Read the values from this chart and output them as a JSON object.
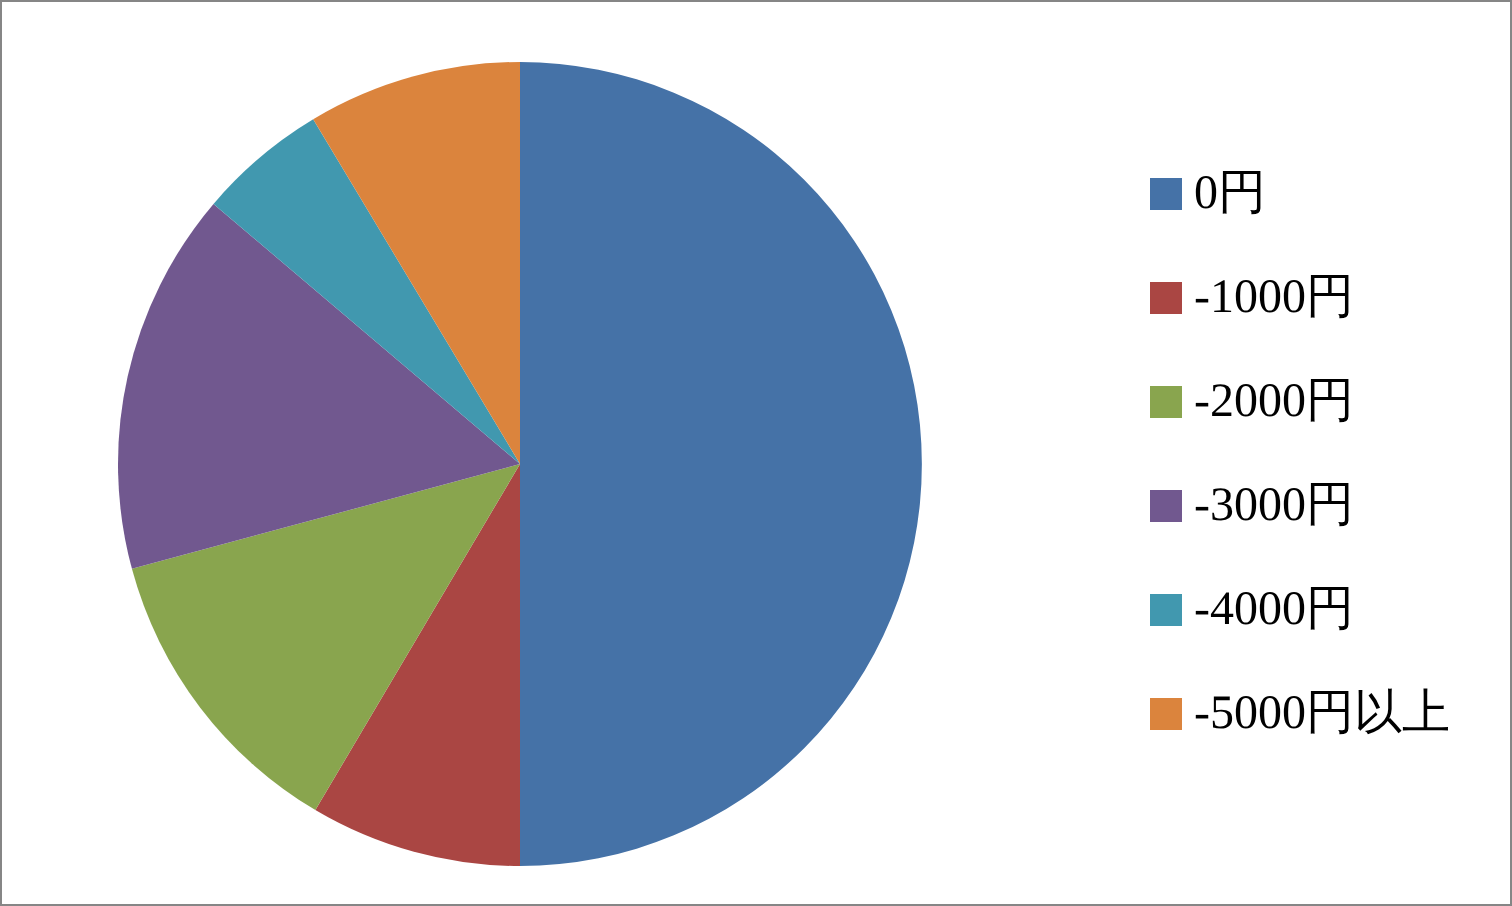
{
  "chart_data": {
    "type": "pie",
    "categories": [
      "0円",
      "-1000円",
      "-2000円",
      "-3000円",
      "-4000円",
      "-5000円以上"
    ],
    "values": [
      50,
      8.5,
      12.3,
      15.4,
      5.2,
      8.6
    ],
    "colors": [
      "#4572a7",
      "#aa4643",
      "#89a54e",
      "#71588f",
      "#4198af",
      "#db843d"
    ],
    "legend": "right"
  }
}
